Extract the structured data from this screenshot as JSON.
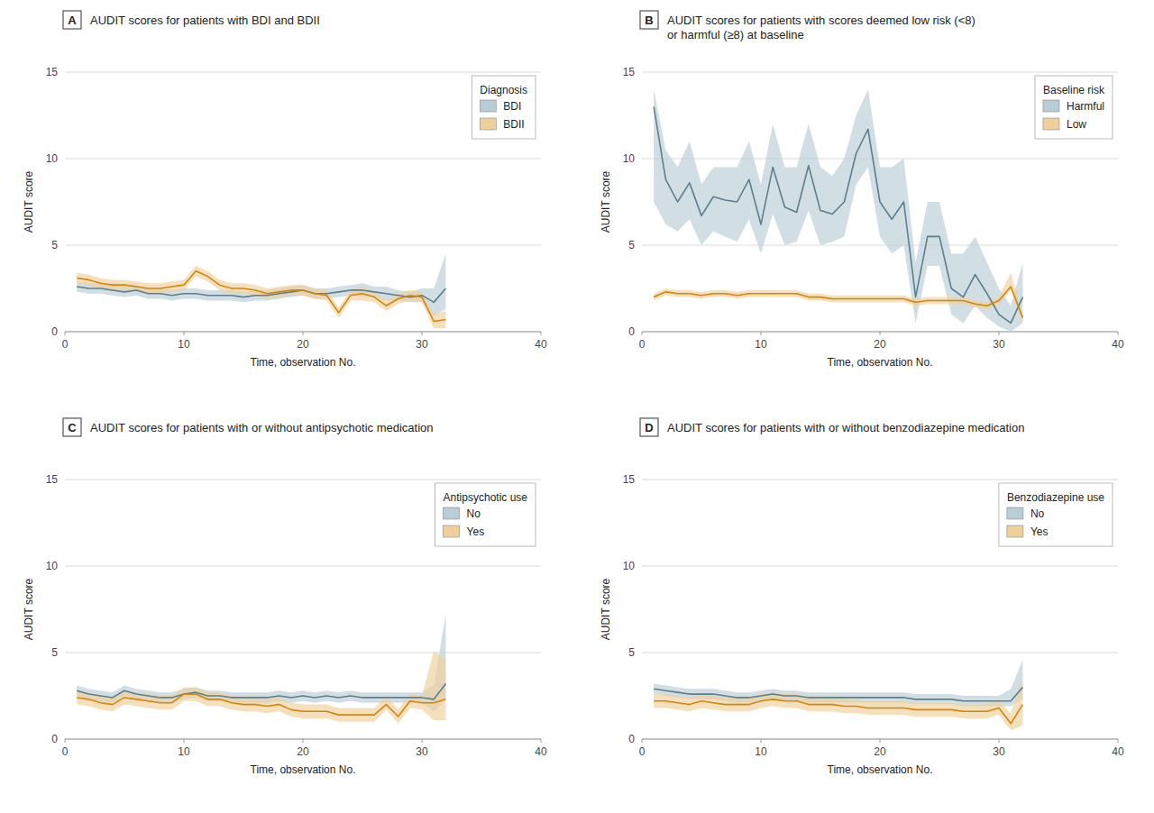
{
  "chart_data": [
    {
      "type": "line",
      "title": "AUDIT scores for patients with BDI and BDII",
      "annotations": [
        "A"
      ],
      "xlabel": "Time, observation No.",
      "ylabel": "AUDIT score",
      "xlim": [
        0,
        40
      ],
      "xticks": [
        0,
        10,
        20,
        30,
        40
      ],
      "ylim": [
        0,
        15
      ],
      "yticks": [
        0,
        5,
        10,
        15
      ],
      "grid": "y",
      "legend": "upper right",
      "legend_title": "Diagnosis",
      "x": [
        1,
        2,
        3,
        4,
        5,
        6,
        7,
        8,
        9,
        10,
        11,
        12,
        13,
        14,
        15,
        16,
        17,
        18,
        19,
        20,
        21,
        22,
        23,
        24,
        25,
        26,
        27,
        28,
        29,
        30,
        31,
        32
      ],
      "series": [
        {
          "name": "BDI",
          "color": "#5b7f8f",
          "band_color": "#b8cdd6",
          "values": [
            2.6,
            2.5,
            2.5,
            2.4,
            2.3,
            2.4,
            2.2,
            2.2,
            2.1,
            2.2,
            2.2,
            2.1,
            2.1,
            2.1,
            2.0,
            2.1,
            2.1,
            2.2,
            2.3,
            2.4,
            2.2,
            2.2,
            2.3,
            2.4,
            2.4,
            2.3,
            2.2,
            2.1,
            2.0,
            2.1,
            1.7,
            2.5
          ],
          "lower": [
            2.3,
            2.2,
            2.2,
            2.1,
            2.0,
            2.1,
            1.9,
            1.9,
            1.8,
            1.9,
            1.9,
            1.8,
            1.8,
            1.8,
            1.7,
            1.8,
            1.8,
            1.9,
            2.0,
            2.1,
            1.9,
            1.9,
            2.0,
            2.1,
            2.0,
            2.0,
            1.8,
            1.8,
            1.7,
            1.7,
            0.9,
            1.3
          ],
          "upper": [
            2.9,
            2.8,
            2.8,
            2.7,
            2.6,
            2.7,
            2.5,
            2.5,
            2.4,
            2.5,
            2.5,
            2.4,
            2.4,
            2.4,
            2.3,
            2.4,
            2.4,
            2.5,
            2.6,
            2.7,
            2.5,
            2.5,
            2.6,
            2.7,
            2.8,
            2.6,
            2.6,
            2.4,
            2.3,
            2.5,
            2.5,
            4.5
          ]
        },
        {
          "name": "BDII",
          "color": "#d4860a",
          "band_color": "#f0d09a",
          "values": [
            3.1,
            3.0,
            2.8,
            2.7,
            2.7,
            2.6,
            2.5,
            2.5,
            2.6,
            2.7,
            3.5,
            3.2,
            2.7,
            2.5,
            2.5,
            2.4,
            2.2,
            2.3,
            2.4,
            2.4,
            2.2,
            2.1,
            1.1,
            2.1,
            2.2,
            2.0,
            1.5,
            1.9,
            2.1,
            2.0,
            0.6,
            0.7
          ],
          "lower": [
            2.8,
            2.7,
            2.5,
            2.4,
            2.4,
            2.3,
            2.2,
            2.2,
            2.3,
            2.4,
            3.2,
            2.9,
            2.4,
            2.2,
            2.2,
            2.1,
            1.9,
            2.0,
            2.1,
            2.1,
            1.9,
            1.8,
            0.8,
            1.8,
            1.8,
            1.7,
            1.2,
            1.6,
            1.8,
            1.7,
            0.2,
            0.2
          ],
          "upper": [
            3.4,
            3.3,
            3.1,
            3.0,
            3.0,
            2.9,
            2.8,
            2.8,
            2.9,
            3.0,
            3.8,
            3.5,
            3.0,
            2.8,
            2.8,
            2.7,
            2.5,
            2.6,
            2.7,
            2.7,
            2.5,
            2.4,
            1.4,
            2.4,
            2.6,
            2.3,
            1.8,
            2.2,
            2.4,
            2.3,
            1.0,
            1.2
          ]
        }
      ]
    },
    {
      "type": "line",
      "title": "AUDIT scores for patients with scores deemed low risk (<8)\nor harmful (≥8) at baseline",
      "annotations": [
        "B"
      ],
      "xlabel": "Time, observation No.",
      "ylabel": "AUDIT score",
      "xlim": [
        0,
        40
      ],
      "xticks": [
        0,
        10,
        20,
        30,
        40
      ],
      "ylim": [
        0,
        15
      ],
      "yticks": [
        0,
        5,
        10,
        15
      ],
      "grid": "y",
      "legend": "upper right",
      "legend_title": "Baseline risk",
      "x": [
        1,
        2,
        3,
        4,
        5,
        6,
        7,
        8,
        9,
        10,
        11,
        12,
        13,
        14,
        15,
        16,
        17,
        18,
        19,
        20,
        21,
        22,
        23,
        24,
        25,
        26,
        27,
        28,
        29,
        30,
        31,
        32
      ],
      "series": [
        {
          "name": "Harmful",
          "color": "#5b7f8f",
          "band_color": "#b8cdd6",
          "values": [
            13.0,
            8.8,
            7.5,
            8.6,
            6.7,
            7.8,
            7.6,
            7.5,
            8.8,
            6.2,
            9.5,
            7.2,
            6.9,
            9.6,
            7.0,
            6.8,
            7.5,
            10.3,
            11.7,
            7.5,
            6.5,
            7.5,
            2.0,
            5.5,
            5.5,
            2.5,
            2.0,
            3.3,
            2.2,
            1.0,
            0.5,
            2.0
          ],
          "lower": [
            7.5,
            6.2,
            5.8,
            6.5,
            5.0,
            5.8,
            5.5,
            5.2,
            6.5,
            4.5,
            6.8,
            5.0,
            5.2,
            7.0,
            5.0,
            5.2,
            5.5,
            8.5,
            9.5,
            5.5,
            4.5,
            5.0,
            0.5,
            3.8,
            3.8,
            1.0,
            0.5,
            1.5,
            0.8,
            0.3,
            0.0,
            0.5
          ],
          "upper": [
            14.0,
            10.5,
            9.5,
            11.0,
            8.5,
            9.5,
            9.5,
            9.5,
            11.0,
            8.5,
            12.0,
            9.5,
            9.5,
            12.0,
            9.5,
            9.0,
            10.0,
            12.5,
            14.0,
            9.5,
            9.5,
            10.0,
            4.0,
            7.5,
            7.5,
            4.5,
            4.5,
            5.5,
            4.0,
            2.5,
            1.5,
            4.0
          ]
        },
        {
          "name": "Low",
          "color": "#d4860a",
          "band_color": "#f0d09a",
          "values": [
            2.0,
            2.3,
            2.2,
            2.2,
            2.1,
            2.2,
            2.2,
            2.1,
            2.2,
            2.2,
            2.2,
            2.2,
            2.2,
            2.0,
            2.0,
            1.9,
            1.9,
            1.9,
            1.9,
            1.9,
            1.9,
            1.9,
            1.7,
            1.8,
            1.8,
            1.8,
            1.8,
            1.6,
            1.5,
            1.8,
            2.6,
            0.8
          ],
          "lower": [
            1.8,
            2.1,
            2.0,
            2.0,
            1.9,
            2.0,
            2.0,
            1.9,
            2.0,
            2.0,
            2.0,
            2.0,
            2.0,
            1.8,
            1.8,
            1.7,
            1.7,
            1.7,
            1.7,
            1.7,
            1.7,
            1.7,
            1.5,
            1.6,
            1.6,
            1.6,
            1.6,
            1.4,
            1.3,
            1.6,
            2.4,
            0.6
          ],
          "upper": [
            2.2,
            2.5,
            2.4,
            2.4,
            2.3,
            2.4,
            2.4,
            2.3,
            2.4,
            2.4,
            2.4,
            2.4,
            2.4,
            2.2,
            2.2,
            2.1,
            2.1,
            2.1,
            2.1,
            2.1,
            2.1,
            2.1,
            1.9,
            2.0,
            2.0,
            2.0,
            2.0,
            1.8,
            1.7,
            2.0,
            3.4,
            1.0
          ]
        }
      ]
    },
    {
      "type": "line",
      "title": "AUDIT scores for patients with or without antipsychotic medication",
      "annotations": [
        "C"
      ],
      "xlabel": "Time, observation No.",
      "ylabel": "AUDIT score",
      "xlim": [
        0,
        40
      ],
      "xticks": [
        0,
        10,
        20,
        30,
        40
      ],
      "ylim": [
        0,
        15
      ],
      "yticks": [
        0,
        5,
        10,
        15
      ],
      "grid": "y",
      "legend": "upper right",
      "legend_title": "Antipsychotic use",
      "x": [
        1,
        2,
        3,
        4,
        5,
        6,
        7,
        8,
        9,
        10,
        11,
        12,
        13,
        14,
        15,
        16,
        17,
        18,
        19,
        20,
        21,
        22,
        23,
        24,
        25,
        26,
        27,
        28,
        29,
        30,
        31,
        32
      ],
      "series": [
        {
          "name": "No",
          "color": "#5b7f8f",
          "band_color": "#b8cdd6",
          "values": [
            2.8,
            2.6,
            2.5,
            2.4,
            2.8,
            2.6,
            2.5,
            2.4,
            2.4,
            2.6,
            2.7,
            2.5,
            2.5,
            2.4,
            2.4,
            2.4,
            2.4,
            2.5,
            2.4,
            2.5,
            2.4,
            2.5,
            2.4,
            2.5,
            2.4,
            2.4,
            2.4,
            2.4,
            2.4,
            2.4,
            2.3,
            3.2
          ],
          "lower": [
            2.5,
            2.3,
            2.2,
            2.1,
            2.5,
            2.3,
            2.2,
            2.1,
            2.1,
            2.3,
            2.4,
            2.2,
            2.2,
            2.1,
            2.1,
            2.1,
            2.1,
            2.2,
            2.1,
            2.2,
            2.1,
            2.2,
            2.1,
            2.2,
            2.1,
            2.1,
            2.1,
            2.1,
            2.1,
            2.1,
            1.6,
            2.3
          ],
          "upper": [
            3.1,
            2.9,
            2.8,
            2.7,
            3.1,
            2.9,
            2.8,
            2.7,
            2.7,
            2.9,
            3.0,
            2.8,
            2.8,
            2.7,
            2.7,
            2.7,
            2.7,
            2.8,
            2.7,
            2.8,
            2.7,
            2.8,
            2.7,
            2.8,
            2.7,
            2.7,
            2.7,
            2.7,
            2.7,
            2.7,
            3.1,
            7.2
          ]
        },
        {
          "name": "Yes",
          "color": "#d4860a",
          "band_color": "#f0d09a",
          "values": [
            2.4,
            2.3,
            2.1,
            2.0,
            2.4,
            2.3,
            2.2,
            2.1,
            2.1,
            2.6,
            2.6,
            2.3,
            2.3,
            2.1,
            2.0,
            2.0,
            1.9,
            2.0,
            1.7,
            1.6,
            1.6,
            1.6,
            1.4,
            1.4,
            1.4,
            1.4,
            2.0,
            1.3,
            2.2,
            2.1,
            2.1,
            2.3
          ],
          "lower": [
            2.0,
            1.9,
            1.7,
            1.6,
            2.0,
            1.9,
            1.8,
            1.7,
            1.7,
            2.2,
            2.2,
            1.9,
            1.9,
            1.7,
            1.6,
            1.6,
            1.5,
            1.6,
            1.3,
            1.2,
            1.2,
            1.2,
            1.0,
            1.0,
            1.0,
            1.0,
            1.7,
            0.9,
            1.8,
            1.7,
            1.1,
            1.1
          ],
          "upper": [
            2.8,
            2.7,
            2.5,
            2.4,
            2.8,
            2.7,
            2.6,
            2.5,
            2.5,
            3.0,
            3.0,
            2.7,
            2.7,
            2.5,
            2.4,
            2.4,
            2.3,
            2.4,
            2.1,
            2.0,
            2.0,
            2.0,
            1.8,
            1.8,
            1.8,
            1.8,
            2.5,
            1.7,
            2.6,
            2.5,
            5.1,
            4.6
          ]
        }
      ]
    },
    {
      "type": "line",
      "title": "AUDIT scores for patients with or without benzodiazepine medication",
      "annotations": [
        "D"
      ],
      "xlabel": "Time, observation No.",
      "ylabel": "AUDIT score",
      "xlim": [
        0,
        40
      ],
      "xticks": [
        0,
        10,
        20,
        30,
        40
      ],
      "ylim": [
        0,
        15
      ],
      "yticks": [
        0,
        5,
        10,
        15
      ],
      "grid": "y",
      "legend": "upper right",
      "legend_title": "Benzodiazepine use",
      "x": [
        1,
        2,
        3,
        4,
        5,
        6,
        7,
        8,
        9,
        10,
        11,
        12,
        13,
        14,
        15,
        16,
        17,
        18,
        19,
        20,
        21,
        22,
        23,
        24,
        25,
        26,
        27,
        28,
        29,
        30,
        31,
        32
      ],
      "series": [
        {
          "name": "No",
          "color": "#5b7f8f",
          "band_color": "#b8cdd6",
          "values": [
            2.9,
            2.8,
            2.7,
            2.6,
            2.6,
            2.6,
            2.5,
            2.4,
            2.4,
            2.5,
            2.6,
            2.5,
            2.5,
            2.4,
            2.4,
            2.4,
            2.4,
            2.4,
            2.4,
            2.4,
            2.4,
            2.4,
            2.3,
            2.3,
            2.3,
            2.3,
            2.2,
            2.2,
            2.2,
            2.2,
            2.2,
            3.0
          ],
          "lower": [
            2.6,
            2.5,
            2.4,
            2.3,
            2.3,
            2.3,
            2.2,
            2.1,
            2.1,
            2.2,
            2.3,
            2.2,
            2.2,
            2.1,
            2.1,
            2.1,
            2.1,
            2.1,
            2.1,
            2.1,
            2.1,
            2.1,
            2.0,
            2.0,
            2.0,
            2.0,
            1.9,
            1.9,
            1.9,
            1.9,
            1.9,
            2.3
          ],
          "upper": [
            3.2,
            3.1,
            3.0,
            2.9,
            2.9,
            2.9,
            2.8,
            2.7,
            2.7,
            2.8,
            2.9,
            2.8,
            2.8,
            2.7,
            2.7,
            2.7,
            2.7,
            2.7,
            2.7,
            2.7,
            2.7,
            2.7,
            2.6,
            2.6,
            2.6,
            2.6,
            2.5,
            2.5,
            2.5,
            2.5,
            2.9,
            4.6
          ]
        },
        {
          "name": "Yes",
          "color": "#d4860a",
          "band_color": "#f0d09a",
          "values": [
            2.2,
            2.2,
            2.1,
            2.0,
            2.2,
            2.1,
            2.0,
            2.0,
            2.0,
            2.2,
            2.3,
            2.2,
            2.2,
            2.0,
            2.0,
            2.0,
            1.9,
            1.9,
            1.8,
            1.8,
            1.8,
            1.8,
            1.7,
            1.7,
            1.7,
            1.7,
            1.6,
            1.6,
            1.6,
            1.8,
            0.9,
            2.0
          ],
          "lower": [
            1.8,
            1.8,
            1.7,
            1.6,
            1.8,
            1.7,
            1.6,
            1.6,
            1.6,
            1.8,
            1.9,
            1.8,
            1.8,
            1.6,
            1.6,
            1.6,
            1.5,
            1.5,
            1.4,
            1.4,
            1.4,
            1.4,
            1.3,
            1.3,
            1.3,
            1.3,
            1.2,
            1.2,
            1.2,
            1.4,
            0.5,
            0.8
          ],
          "upper": [
            2.6,
            2.6,
            2.5,
            2.4,
            2.6,
            2.5,
            2.4,
            2.4,
            2.4,
            2.6,
            2.7,
            2.6,
            2.6,
            2.4,
            2.4,
            2.4,
            2.3,
            2.3,
            2.2,
            2.2,
            2.2,
            2.2,
            2.1,
            2.1,
            2.1,
            2.1,
            2.0,
            2.0,
            2.0,
            2.2,
            1.5,
            3.5
          ]
        }
      ]
    }
  ]
}
